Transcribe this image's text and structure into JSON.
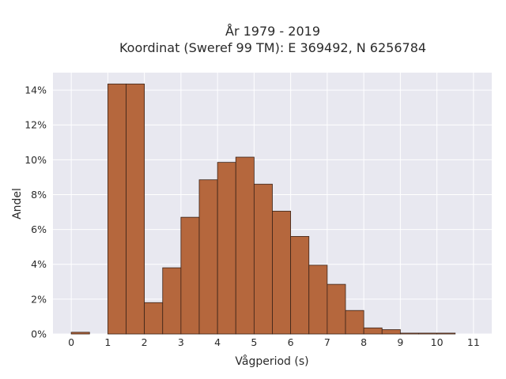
{
  "chart_data": {
    "type": "bar",
    "title_line1": "År 1979 - 2019",
    "title_line2": "Koordinat (Sweref 99 TM): E 369492, N 6256784",
    "xlabel": "Vågperiod (s)",
    "ylabel": "Andel",
    "bin_width": 0.5,
    "bins": [
      {
        "start": 0.0,
        "value": 0.1
      },
      {
        "start": 1.0,
        "value": 14.35
      },
      {
        "start": 1.5,
        "value": 14.35
      },
      {
        "start": 2.0,
        "value": 1.8
      },
      {
        "start": 2.5,
        "value": 3.8
      },
      {
        "start": 3.0,
        "value": 6.7
      },
      {
        "start": 3.5,
        "value": 8.85
      },
      {
        "start": 4.0,
        "value": 9.85
      },
      {
        "start": 4.5,
        "value": 10.15
      },
      {
        "start": 5.0,
        "value": 8.6
      },
      {
        "start": 5.5,
        "value": 7.05
      },
      {
        "start": 6.0,
        "value": 5.6
      },
      {
        "start": 6.5,
        "value": 3.95
      },
      {
        "start": 7.0,
        "value": 2.85
      },
      {
        "start": 7.5,
        "value": 1.35
      },
      {
        "start": 8.0,
        "value": 0.35
      },
      {
        "start": 8.5,
        "value": 0.25
      },
      {
        "start": 9.0,
        "value": 0.05
      },
      {
        "start": 9.5,
        "value": 0.05
      },
      {
        "start": 10.0,
        "value": 0.05
      }
    ],
    "x_ticks": [
      "0",
      "1",
      "2",
      "3",
      "4",
      "5",
      "6",
      "7",
      "8",
      "9",
      "10",
      "11"
    ],
    "y_ticks": [
      "0%",
      "2%",
      "4%",
      "6%",
      "8%",
      "10%",
      "12%",
      "14%"
    ],
    "xlim": [
      -0.5,
      11.5
    ],
    "ylim": [
      0,
      15
    ],
    "grid": true,
    "colors": {
      "bar_fill": "#b5673d",
      "bar_edge": "#3b2318",
      "plot_bg": "#e8e8f0",
      "grid": "#ffffff"
    }
  }
}
